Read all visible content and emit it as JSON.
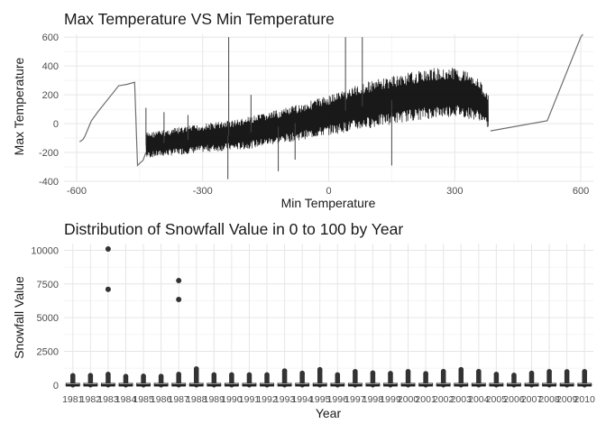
{
  "chart_data": [
    {
      "type": "line",
      "title": "Max Temperature VS Min Temperature",
      "xlabel": "Min Temperature",
      "ylabel": "Max Temperature",
      "xlim": [
        -630,
        630
      ],
      "ylim": [
        -400,
        620
      ],
      "xticks": [
        -600,
        -300,
        0,
        300,
        600
      ],
      "yticks": [
        -400,
        -200,
        0,
        200,
        400,
        600
      ],
      "grid": true,
      "line_color": "#000000",
      "outline_points": {
        "x": [
          -593,
          -585,
          -580,
          -565,
          -550,
          -500,
          -490,
          -480,
          -462,
          -455,
          -448,
          -442,
          -435
        ],
        "y": [
          -125,
          -110,
          -85,
          20,
          80,
          263,
          268,
          273,
          287,
          -290,
          -270,
          -255,
          -200
        ]
      },
      "band": {
        "x_range": [
          -435,
          380
        ],
        "lower": [
          [
            -435,
            -240
          ],
          [
            -300,
            -200
          ],
          [
            -200,
            -180
          ],
          [
            -100,
            -130
          ],
          [
            0,
            -80
          ],
          [
            100,
            -30
          ],
          [
            200,
            20
          ],
          [
            300,
            50
          ],
          [
            360,
            20
          ],
          [
            380,
            -40
          ]
        ],
        "upper": [
          [
            -435,
            -60
          ],
          [
            -300,
            0
          ],
          [
            -200,
            40
          ],
          [
            -100,
            110
          ],
          [
            0,
            200
          ],
          [
            100,
            300
          ],
          [
            200,
            360
          ],
          [
            250,
            385
          ],
          [
            300,
            390
          ],
          [
            340,
            360
          ],
          [
            360,
            300
          ],
          [
            380,
            200
          ]
        ]
      },
      "spikes": [
        {
          "x": -435,
          "y": 110
        },
        {
          "x": -392,
          "y": 80
        },
        {
          "x": -335,
          "y": 60
        },
        {
          "x": -240,
          "y": -385
        },
        {
          "x": -238,
          "y": 600
        },
        {
          "x": -185,
          "y": 200
        },
        {
          "x": -120,
          "y": -330
        },
        {
          "x": -80,
          "y": -250
        },
        {
          "x": 40,
          "y": 600
        },
        {
          "x": 80,
          "y": 600
        },
        {
          "x": 150,
          "y": -290
        }
      ],
      "tail_points": {
        "x": [
          385,
          520,
          600,
          605
        ],
        "y": [
          -50,
          20,
          600,
          620
        ]
      }
    },
    {
      "type": "box",
      "title": "Distribution of Snowfall Value in 0 to 100 by Year",
      "xlabel": "Year",
      "ylabel": "Snowfall Value",
      "ylim": [
        -350,
        10500
      ],
      "yticks": [
        0,
        2500,
        5000,
        7500,
        10000
      ],
      "ytick_labels": [
        "0",
        "2500",
        "5000",
        "7500",
        "10000"
      ],
      "grid": true,
      "categories": [
        "1981",
        "1982",
        "1983",
        "1984",
        "1985",
        "1986",
        "1987",
        "1988",
        "1989",
        "1990",
        "1991",
        "1992",
        "1993",
        "1994",
        "1995",
        "1996",
        "1997",
        "1998",
        "1999",
        "2000",
        "2001",
        "2002",
        "2003",
        "2004",
        "2005",
        "2006",
        "2007",
        "2008",
        "2009",
        "2010"
      ],
      "upper_extent": [
        700,
        710,
        800,
        640,
        660,
        650,
        800,
        1200,
        760,
        760,
        760,
        760,
        1050,
        880,
        1150,
        760,
        1000,
        900,
        860,
        1000,
        850,
        1010,
        1150,
        1010,
        800,
        730,
        880,
        1000,
        990,
        1000
      ],
      "extreme_outliers": [
        [],
        [],
        [
          10100,
          7100
        ],
        [],
        [],
        [],
        [
          7750,
          6350
        ],
        [],
        [],
        [],
        [],
        [],
        [],
        [],
        [],
        [],
        [],
        [],
        [],
        [],
        [],
        [],
        [],
        [],
        [],
        [],
        [],
        [],
        [],
        []
      ]
    }
  ]
}
